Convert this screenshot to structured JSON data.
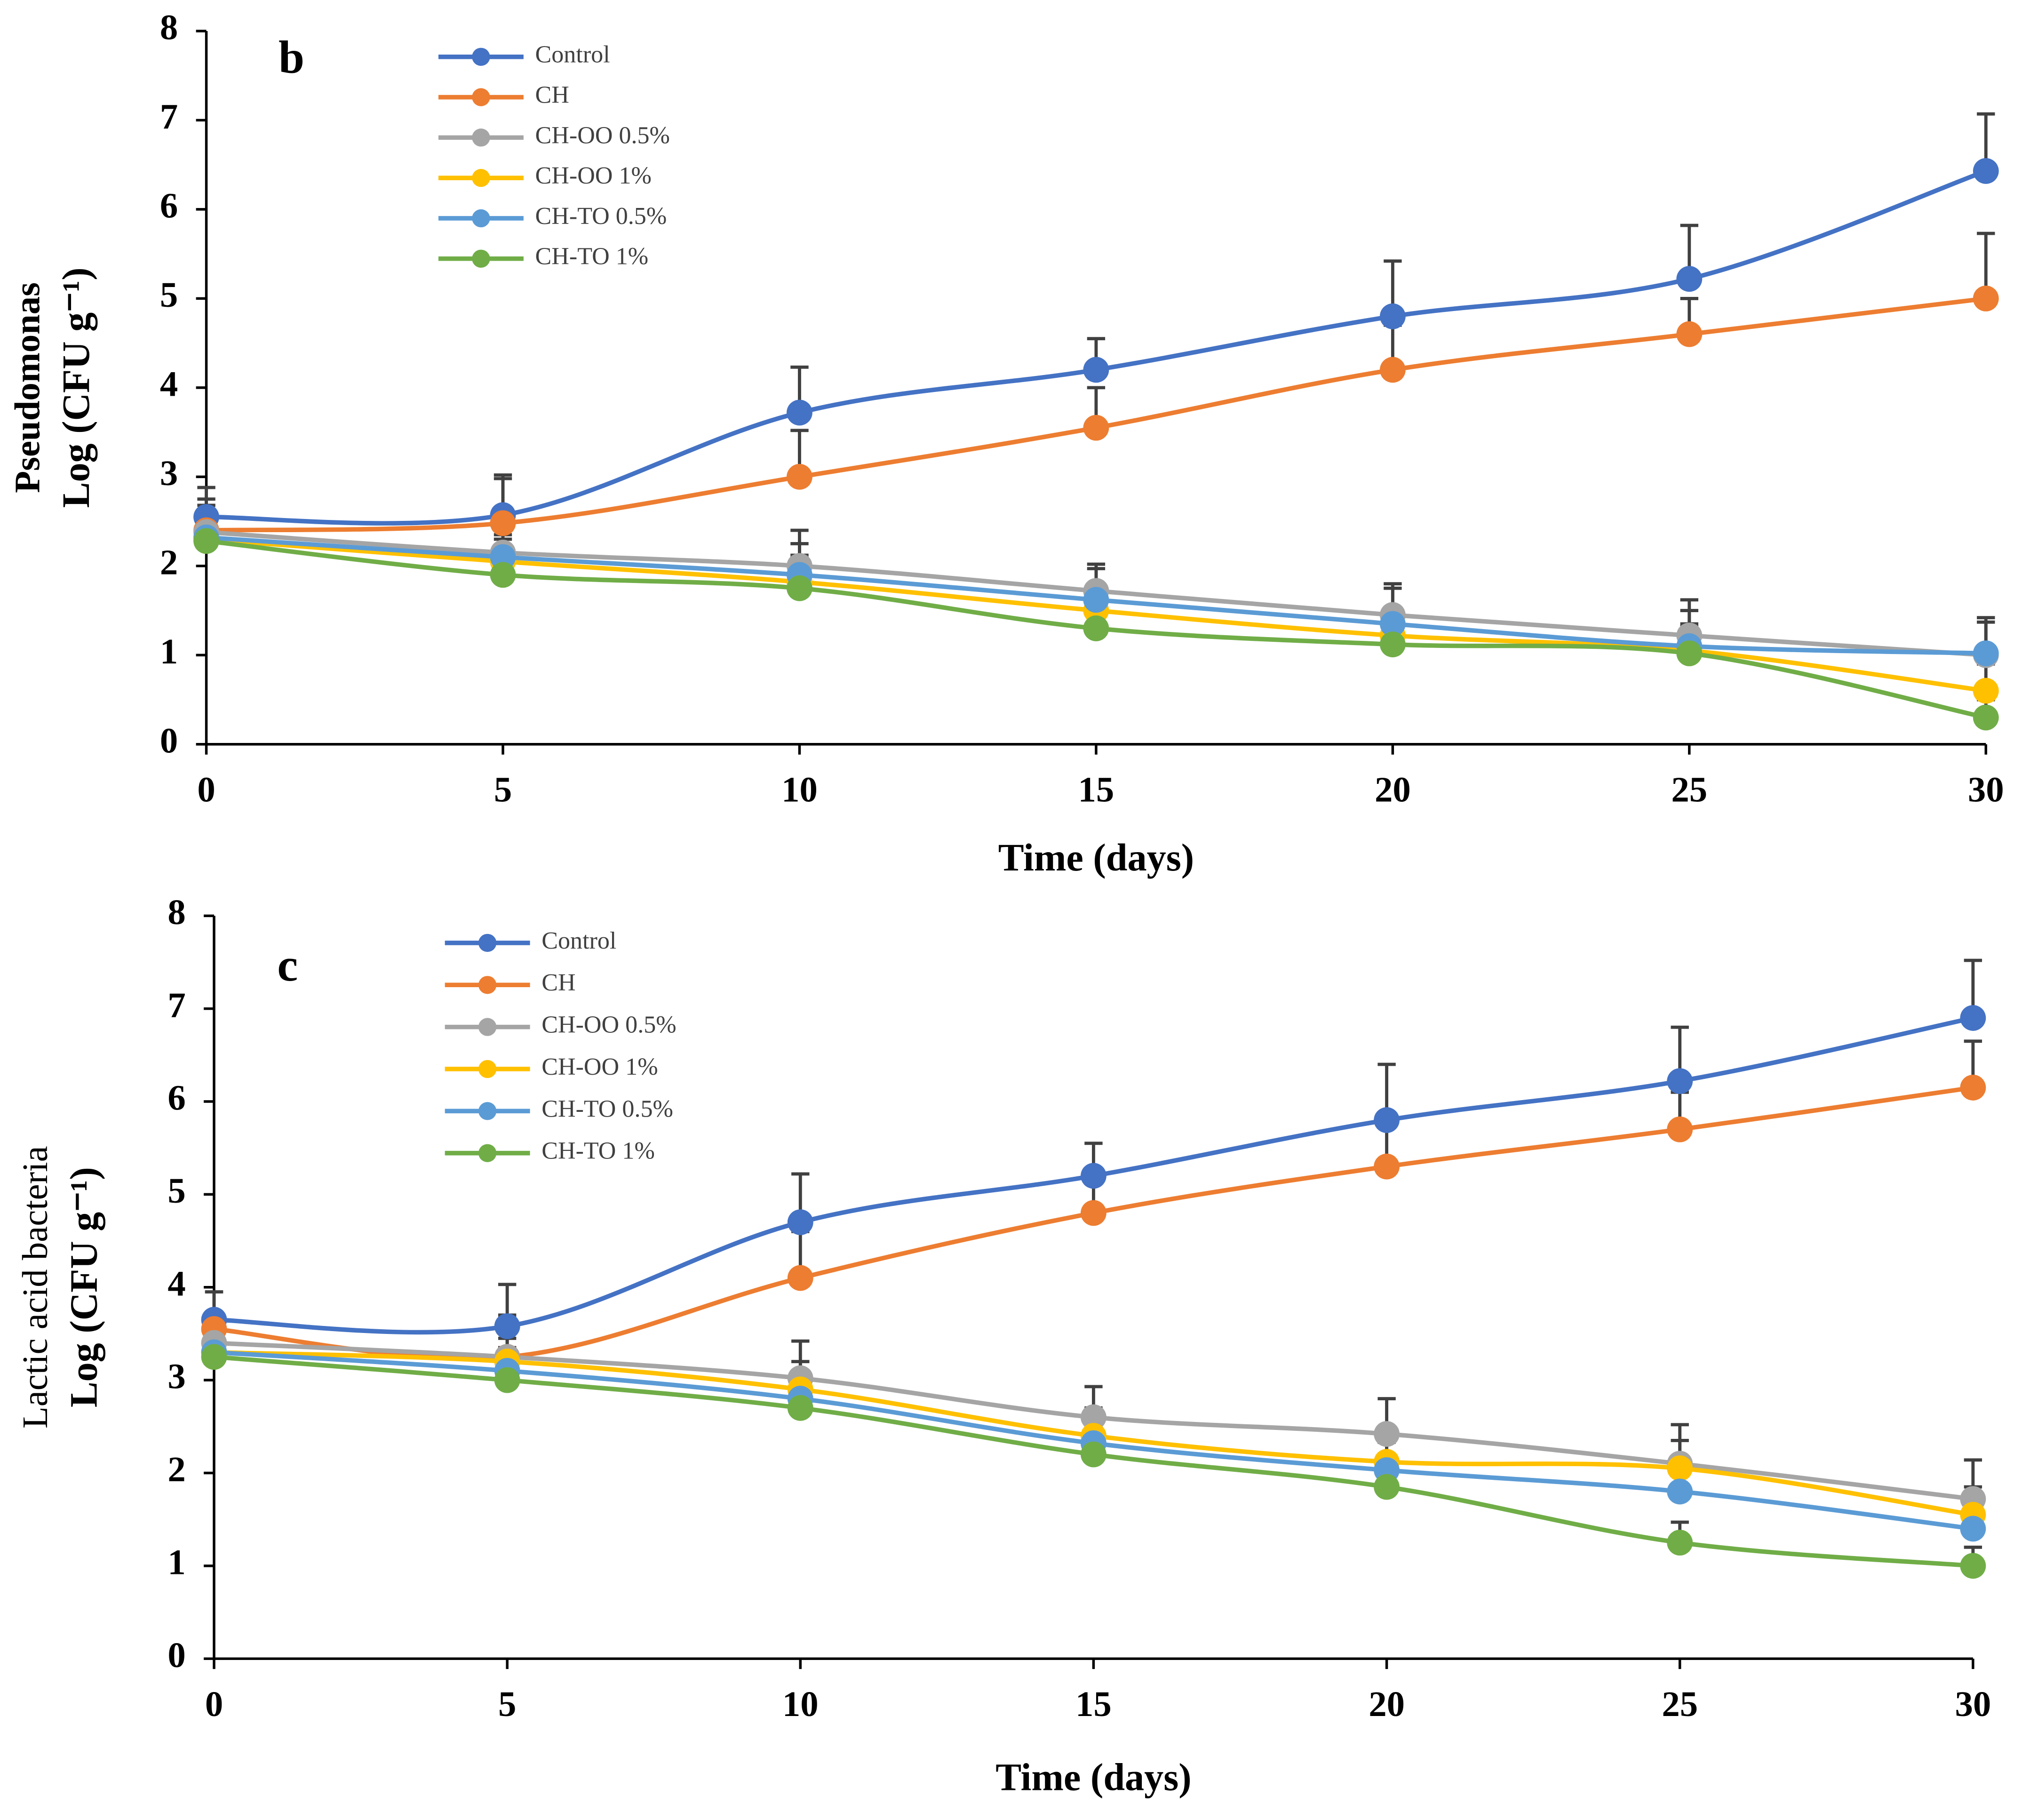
{
  "chart_data": [
    {
      "type": "line",
      "panel_label": "b",
      "ylabel": [
        "Pseudomonas",
        "Log (CFU g⁻¹)"
      ],
      "xlabel": "Time (days)",
      "x": [
        0,
        5,
        10,
        15,
        20,
        25,
        30
      ],
      "xlim": [
        0,
        30
      ],
      "xticks": [
        0,
        5,
        10,
        15,
        20,
        25,
        30
      ],
      "ylim": [
        0,
        8
      ],
      "yticks": [
        0,
        1,
        2,
        3,
        4,
        5,
        6,
        7,
        8
      ],
      "grid": false,
      "legend": "top-left",
      "smooth": true,
      "series": [
        {
          "name": "Control",
          "color": "#4472c4",
          "values": [
            2.55,
            2.57,
            3.72,
            4.2,
            4.8,
            5.22,
            6.43
          ],
          "errors": [
            0.33,
            0.45,
            0.51,
            0.35,
            0.62,
            0.6,
            0.64
          ]
        },
        {
          "name": "CH",
          "color": "#ed7d31",
          "values": [
            2.4,
            2.48,
            3.0,
            3.55,
            4.2,
            4.6,
            5.0
          ],
          "errors": [
            0.35,
            0.5,
            0.52,
            0.45,
            0.5,
            0.4,
            0.73
          ]
        },
        {
          "name": "CH-OO 0.5%",
          "color": "#a5a5a5",
          "values": [
            2.38,
            2.15,
            2.0,
            1.72,
            1.45,
            1.22,
            1.0
          ],
          "errors": [
            0.3,
            0.3,
            0.4,
            0.3,
            0.35,
            0.4,
            0.42
          ]
        },
        {
          "name": "CH-OO 1%",
          "color": "#ffc000",
          "values": [
            2.3,
            2.05,
            1.82,
            1.5,
            1.22,
            1.05,
            0.6
          ],
          "errors": [
            0.25,
            0.25,
            0.3,
            0.3,
            0.3,
            0.3,
            0.3
          ]
        },
        {
          "name": "CH-TO 0.5%",
          "color": "#5b9bd5",
          "values": [
            2.32,
            2.1,
            1.9,
            1.62,
            1.35,
            1.1,
            1.02
          ],
          "errors": [
            0.25,
            0.25,
            0.35,
            0.35,
            0.4,
            0.4,
            0.35
          ]
        },
        {
          "name": "CH-TO 1%",
          "color": "#70ad47",
          "values": [
            2.28,
            1.9,
            1.75,
            1.3,
            1.12,
            1.02,
            0.3
          ],
          "errors": [
            0.2,
            0.2,
            0.3,
            0.3,
            0.3,
            0.3,
            0.2
          ]
        }
      ]
    },
    {
      "type": "line",
      "panel_label": "c",
      "ylabel": [
        "Lactic acid bacteria",
        "Log (CFU g⁻¹)"
      ],
      "xlabel": "Time (days)",
      "x": [
        0,
        5,
        10,
        15,
        20,
        25,
        30
      ],
      "xlim": [
        0,
        30
      ],
      "xticks": [
        0,
        5,
        10,
        15,
        20,
        25,
        30
      ],
      "ylim": [
        0,
        8
      ],
      "yticks": [
        0,
        1,
        2,
        3,
        4,
        5,
        6,
        7,
        8
      ],
      "grid": false,
      "legend": "top-left",
      "smooth": true,
      "series": [
        {
          "name": "Control",
          "color": "#4472c4",
          "values": [
            3.65,
            3.58,
            4.7,
            5.2,
            5.8,
            6.22,
            6.9
          ],
          "errors": [
            0.3,
            0.45,
            0.52,
            0.35,
            0.6,
            0.58,
            0.62
          ]
        },
        {
          "name": "CH",
          "color": "#ed7d31",
          "values": [
            3.55,
            3.25,
            4.1,
            4.8,
            5.3,
            5.7,
            6.15
          ],
          "errors": [
            0.4,
            0.45,
            0.5,
            0.4,
            0.5,
            0.4,
            0.5
          ]
        },
        {
          "name": "CH-OO 0.5%",
          "color": "#a5a5a5",
          "values": [
            3.4,
            3.25,
            3.02,
            2.6,
            2.42,
            2.1,
            1.72
          ],
          "errors": [
            0.3,
            0.3,
            0.4,
            0.33,
            0.38,
            0.42,
            0.42
          ]
        },
        {
          "name": "CH-OO 1%",
          "color": "#ffc000",
          "values": [
            3.3,
            3.2,
            2.9,
            2.4,
            2.12,
            2.05,
            1.55
          ],
          "errors": [
            0.25,
            0.25,
            0.3,
            0.3,
            0.3,
            0.3,
            0.3
          ]
        },
        {
          "name": "CH-TO 0.5%",
          "color": "#5b9bd5",
          "values": [
            3.3,
            3.1,
            2.8,
            2.32,
            2.03,
            1.8,
            1.4
          ],
          "errors": [
            0.25,
            0.25,
            0.3,
            0.3,
            0.3,
            0.3,
            0.3
          ]
        },
        {
          "name": "CH-TO 1%",
          "color": "#70ad47",
          "values": [
            3.25,
            3.0,
            2.7,
            2.2,
            1.85,
            1.25,
            1.0
          ],
          "errors": [
            0.2,
            0.2,
            0.3,
            0.3,
            0.3,
            0.22,
            0.2
          ]
        }
      ]
    }
  ]
}
